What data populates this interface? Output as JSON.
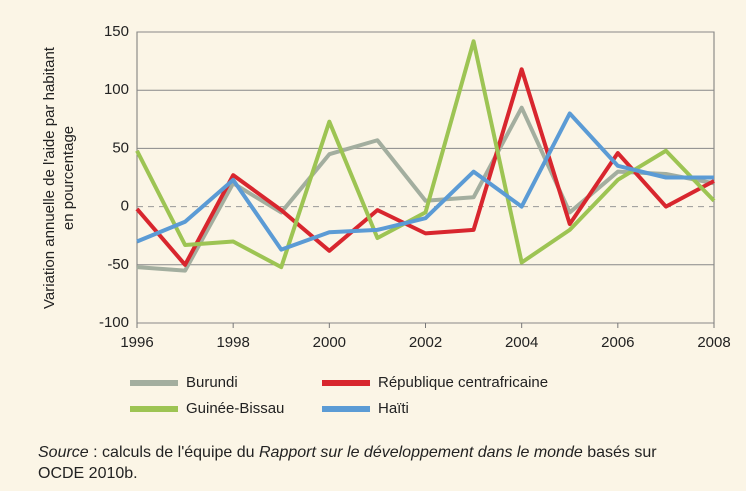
{
  "chart_data": {
    "type": "line",
    "y_label": [
      "Variation annuelle de l'aide par habitant",
      "en pourcentage"
    ],
    "x": [
      1996,
      1997,
      1998,
      1999,
      2000,
      2001,
      2002,
      2003,
      2004,
      2005,
      2006,
      2007,
      2008
    ],
    "xlim": [
      1996,
      2008
    ],
    "xticks": [
      1996,
      1998,
      2000,
      2002,
      2004,
      2006,
      2008
    ],
    "ylim": [
      -100,
      150
    ],
    "yticks": [
      -100,
      -50,
      0,
      50,
      100,
      150
    ],
    "grid": true,
    "series": [
      {
        "name": "Burundi",
        "color": "#a3ae9f",
        "values": [
          -52,
          -55,
          20,
          -5,
          45,
          57,
          5,
          8,
          85,
          -5,
          30,
          28,
          20
        ]
      },
      {
        "name": "République centrafricaine",
        "color": "#d8262e",
        "values": [
          -2,
          -50,
          27,
          -3,
          -38,
          -3,
          -23,
          -20,
          118,
          -15,
          46,
          0,
          22
        ]
      },
      {
        "name": "Guinée-Bissau",
        "color": "#9dc453",
        "values": [
          48,
          -33,
          -30,
          -52,
          73,
          -27,
          -5,
          142,
          -48,
          -20,
          23,
          48,
          5
        ]
      },
      {
        "name": "Haïti",
        "color": "#5b9bd5",
        "values": [
          -30,
          -13,
          23,
          -37,
          -22,
          -20,
          -10,
          30,
          0,
          80,
          35,
          25,
          25
        ]
      }
    ],
    "source": {
      "label": "Source",
      "text1": " : calculs de l'équipe du ",
      "title": "Rapport sur le développement dans le monde",
      "text2": " basés sur OCDE 2010b."
    }
  }
}
